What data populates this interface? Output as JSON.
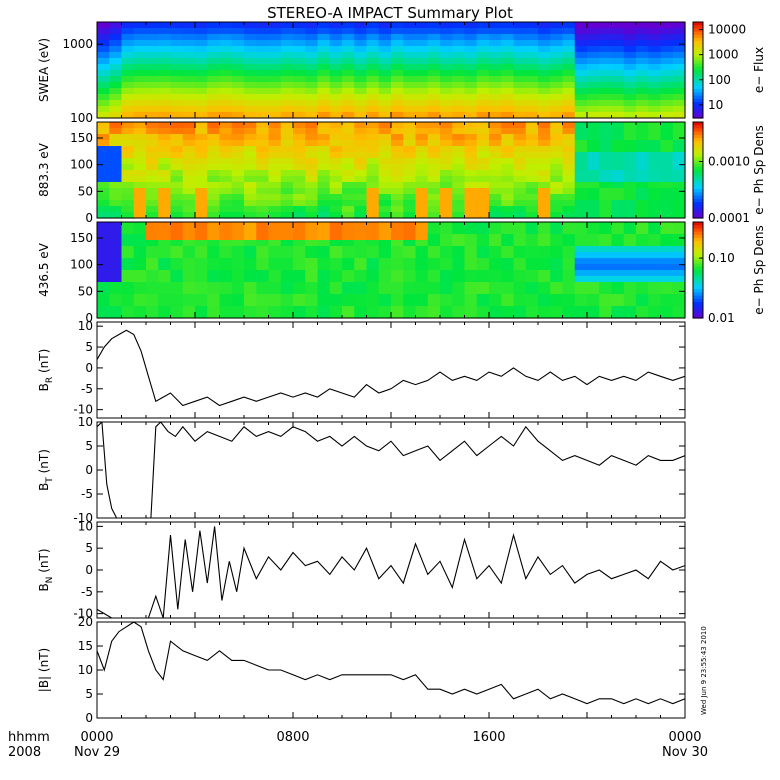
{
  "title": "STEREO-A IMPACT Summary Plot",
  "time_axis": {
    "corner_line1": "hhmm",
    "corner_line2": "2008",
    "ticks": [
      {
        "label": "0000",
        "date": "Nov 29",
        "hour": 0
      },
      {
        "label": "0800",
        "date": "",
        "hour": 8
      },
      {
        "label": "1600",
        "date": "",
        "hour": 16
      },
      {
        "label": "0000",
        "date": "Nov 30",
        "hour": 24
      }
    ]
  },
  "timestamp": "Wed Jun  9 23:55:43 2010",
  "colors": {
    "line": "#000000",
    "colormap": "rainbow: purple-blue-cyan-green-yellow-orange-red"
  },
  "chart_data": [
    {
      "type": "heatmap",
      "id": "swea",
      "ylabel": "SWEA (eV)",
      "yscale": "log",
      "ylim": [
        100,
        2000
      ],
      "yticks": [
        {
          "value": 100,
          "label": "100"
        },
        {
          "value": 1000,
          "label": "1000"
        }
      ],
      "colorbar": {
        "label": "e− Flux",
        "scale": "log",
        "range": [
          3,
          20000
        ],
        "ticks": [
          {
            "value": 10000,
            "label": "10000"
          },
          {
            "value": 1000,
            "label": "1000"
          },
          {
            "value": 100,
            "label": "100"
          },
          {
            "value": 10,
            "label": "10"
          }
        ]
      },
      "features": {
        "transition_hour": 19.3
      }
    },
    {
      "type": "heatmap",
      "id": "pad883",
      "ylabel": "883.3 eV",
      "ylim": [
        0,
        180
      ],
      "yticks": [
        {
          "value": 0,
          "label": "0"
        },
        {
          "value": 50,
          "label": "50"
        },
        {
          "value": 100,
          "label": "100"
        },
        {
          "value": 150,
          "label": "150"
        }
      ],
      "colorbar": {
        "label": "e− Ph Sp Dens",
        "scale": "log",
        "range": [
          0.0001,
          0.005
        ],
        "ticks": [
          {
            "value": 0.001,
            "label": "0.0010"
          },
          {
            "value": 0.0001,
            "label": "0.0001"
          }
        ]
      }
    },
    {
      "type": "heatmap",
      "id": "pad436",
      "ylabel": "436.5 eV",
      "ylim": [
        0,
        180
      ],
      "yticks": [
        {
          "value": 0,
          "label": "0"
        },
        {
          "value": 50,
          "label": "50"
        },
        {
          "value": 100,
          "label": "100"
        },
        {
          "value": 150,
          "label": "150"
        }
      ],
      "colorbar": {
        "label": "e− Ph Sp Dens",
        "scale": "log",
        "range": [
          0.01,
          0.4
        ],
        "ticks": [
          {
            "value": 0.1,
            "label": "0.10"
          },
          {
            "value": 0.01,
            "label": "0.01"
          }
        ]
      }
    },
    {
      "type": "line",
      "id": "br",
      "ylabel": "B",
      "ylabel_sub": "R",
      "ylabel_unit": " (nT)",
      "ylim": [
        -12,
        11
      ],
      "yticks": [
        {
          "value": 10,
          "label": "10"
        },
        {
          "value": 5,
          "label": "5"
        },
        {
          "value": 0,
          "label": "0"
        },
        {
          "value": -5,
          "label": "-5"
        },
        {
          "value": -10,
          "label": "-10"
        }
      ],
      "x": [
        0,
        0.3,
        0.6,
        0.9,
        1.2,
        1.5,
        1.8,
        2.1,
        2.4,
        2.7,
        3.0,
        3.5,
        4.0,
        4.5,
        5.0,
        5.5,
        6.0,
        6.5,
        7.0,
        7.5,
        8.0,
        8.5,
        9.0,
        9.5,
        10.0,
        10.5,
        11.0,
        11.5,
        12.0,
        12.5,
        13.0,
        13.5,
        14.0,
        14.5,
        15.0,
        15.5,
        16.0,
        16.5,
        17.0,
        17.5,
        18.0,
        18.5,
        19.0,
        19.5,
        20.0,
        20.5,
        21.0,
        21.5,
        22.0,
        22.5,
        23.0,
        23.5,
        24.0
      ],
      "y": [
        2,
        5,
        7,
        8,
        9,
        8,
        4,
        -2,
        -8,
        -7,
        -6,
        -9,
        -8,
        -7,
        -9,
        -8,
        -7,
        -8,
        -7,
        -6,
        -7,
        -6,
        -7,
        -5,
        -6,
        -7,
        -4,
        -6,
        -5,
        -3,
        -4,
        -3,
        -1,
        -3,
        -2,
        -3,
        -1,
        -2,
        0,
        -2,
        -3,
        -1,
        -3,
        -2,
        -4,
        -2,
        -3,
        -2,
        -3,
        -1,
        -2,
        -3,
        -2
      ]
    },
    {
      "type": "line",
      "id": "bt",
      "ylabel": "B",
      "ylabel_sub": "T",
      "ylabel_unit": " (nT)",
      "ylim": [
        -10,
        10
      ],
      "yticks": [
        {
          "value": 10,
          "label": "10"
        },
        {
          "value": 5,
          "label": "5"
        },
        {
          "value": 0,
          "label": "0"
        },
        {
          "value": -5,
          "label": "-5"
        },
        {
          "value": -10,
          "label": "-10"
        }
      ],
      "x": [
        0,
        0.2,
        0.4,
        0.6,
        0.8,
        1.0,
        1.2,
        1.4,
        1.7,
        2.0,
        2.2,
        2.4,
        2.6,
        2.9,
        3.2,
        3.5,
        4.0,
        4.5,
        5.0,
        5.5,
        6.0,
        6.5,
        7.0,
        7.5,
        8.0,
        8.5,
        9.0,
        9.5,
        10.0,
        10.5,
        11.0,
        11.5,
        12.0,
        12.5,
        13.0,
        13.5,
        14.0,
        14.5,
        15.0,
        15.5,
        16.0,
        16.5,
        17.0,
        17.5,
        18.0,
        18.5,
        19.0,
        19.5,
        20.0,
        20.5,
        21.0,
        21.5,
        22.0,
        22.5,
        23.0,
        23.5,
        24.0
      ],
      "y": [
        9,
        10,
        -3,
        -8,
        -10,
        -10,
        -10,
        -10,
        -10,
        -10,
        -10,
        9,
        10,
        8,
        7,
        9,
        6,
        8,
        7,
        6,
        9,
        7,
        8,
        7,
        9,
        8,
        6,
        7,
        5,
        7,
        5,
        4,
        6,
        3,
        4,
        5,
        2,
        4,
        6,
        3,
        5,
        7,
        5,
        9,
        6,
        4,
        2,
        3,
        2,
        1,
        3,
        2,
        1,
        3,
        2,
        2,
        3
      ]
    },
    {
      "type": "line",
      "id": "bn",
      "ylabel": "B",
      "ylabel_sub": "N",
      "ylabel_unit": " (nT)",
      "ylim": [
        -11,
        11
      ],
      "yticks": [
        {
          "value": 10,
          "label": "10"
        },
        {
          "value": 5,
          "label": "5"
        },
        {
          "value": 0,
          "label": "0"
        },
        {
          "value": -5,
          "label": "-5"
        },
        {
          "value": -10,
          "label": "-10"
        }
      ],
      "x": [
        0,
        0.3,
        0.6,
        0.9,
        1.2,
        1.5,
        1.8,
        2.1,
        2.4,
        2.7,
        3.0,
        3.3,
        3.6,
        3.9,
        4.2,
        4.5,
        4.8,
        5.1,
        5.4,
        5.7,
        6.0,
        6.5,
        7.0,
        7.5,
        8.0,
        8.5,
        9.0,
        9.5,
        10.0,
        10.5,
        11.0,
        11.5,
        12.0,
        12.5,
        13.0,
        13.5,
        14.0,
        14.5,
        15.0,
        15.5,
        16.0,
        16.5,
        17.0,
        17.5,
        18.0,
        18.5,
        19.0,
        19.5,
        20.0,
        20.5,
        21.0,
        21.5,
        22.0,
        22.5,
        23.0,
        23.5,
        24.0
      ],
      "y": [
        -9,
        -10,
        -11,
        -11,
        -11,
        -11,
        -11,
        -11,
        -6,
        -11,
        8,
        -9,
        7,
        -5,
        9,
        -3,
        10,
        -7,
        2,
        -5,
        5,
        -2,
        3,
        0,
        4,
        1,
        2,
        -1,
        3,
        0,
        5,
        -2,
        1,
        -3,
        6,
        -1,
        2,
        -4,
        7,
        -2,
        1,
        -3,
        8,
        -2,
        3,
        -1,
        1,
        -3,
        -1,
        0,
        -2,
        -1,
        0,
        -2,
        2,
        0,
        1
      ]
    },
    {
      "type": "line",
      "id": "bmag",
      "ylabel": "|B| (nT)",
      "ylim": [
        0,
        20
      ],
      "yticks": [
        {
          "value": 20,
          "label": "20"
        },
        {
          "value": 15,
          "label": "15"
        },
        {
          "value": 10,
          "label": "10"
        },
        {
          "value": 5,
          "label": "5"
        },
        {
          "value": 0,
          "label": "0"
        }
      ],
      "x": [
        0,
        0.3,
        0.6,
        0.9,
        1.2,
        1.5,
        1.8,
        2.1,
        2.4,
        2.7,
        3.0,
        3.5,
        4.0,
        4.5,
        5.0,
        5.5,
        6.0,
        6.5,
        7.0,
        7.5,
        8.0,
        8.5,
        9.0,
        9.5,
        10.0,
        10.5,
        11.0,
        11.5,
        12.0,
        12.5,
        13.0,
        13.5,
        14.0,
        14.5,
        15.0,
        15.5,
        16.0,
        16.5,
        17.0,
        17.5,
        18.0,
        18.5,
        19.0,
        19.5,
        20.0,
        20.5,
        21.0,
        21.5,
        22.0,
        22.5,
        23.0,
        23.5,
        24.0
      ],
      "y": [
        14,
        10,
        16,
        18,
        19,
        20,
        19,
        14,
        10,
        8,
        16,
        14,
        13,
        12,
        14,
        12,
        12,
        11,
        10,
        10,
        9,
        8,
        9,
        8,
        9,
        9,
        9,
        9,
        9,
        8,
        9,
        6,
        6,
        5,
        6,
        5,
        6,
        7,
        4,
        5,
        6,
        4,
        5,
        4,
        3,
        4,
        4,
        3,
        4,
        3,
        4,
        3,
        4
      ]
    }
  ]
}
